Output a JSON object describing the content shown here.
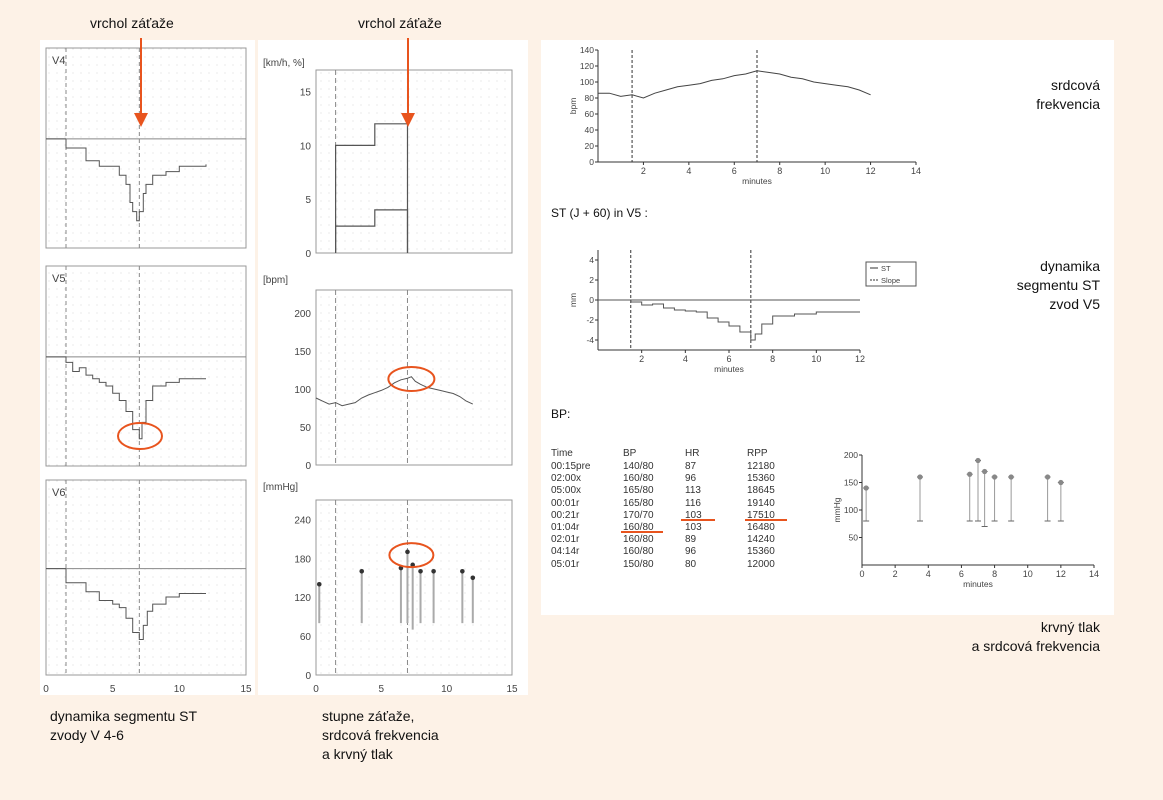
{
  "labels": {
    "peak_left": "vrchol záťaže",
    "peak_right": "vrchol záťaže",
    "caption_st_1": "dynamika segmentu ST",
    "caption_st_2": "zvody  V 4-6",
    "caption_stages_1": "stupne záťaže,",
    "caption_stages_2": "srdcová frekvencia",
    "caption_stages_3": "a krvný tlak",
    "hr_1": "srdcová",
    "hr_2": "frekvencia",
    "dyn_1": "dynamika",
    "dyn_2": "segmentu ST",
    "dyn_3": "zvod V5",
    "bp_1": "krvný tlak",
    "bp_2": "a srdcová frekvencia",
    "st_title": "ST (J + 60) in V5 :",
    "bp_title": "BP:"
  },
  "colors": {
    "background": "#fdf2e7",
    "marker": "#e8541e",
    "trace": "#555555"
  },
  "chart_data": [
    {
      "type": "line",
      "panel": "V4",
      "leads": "V4",
      "x_ticks": [],
      "xlim": [
        0,
        15
      ],
      "series": [
        {
          "x": [
            0,
            1.5,
            1.5,
            3,
            3,
            4,
            5,
            5.5,
            6,
            6.3,
            6.5,
            6.8,
            7,
            7.3,
            7.5,
            8,
            9,
            10,
            12
          ],
          "y": [
            0,
            0,
            -0.5,
            -0.8,
            -1.2,
            -1.5,
            -1.5,
            -2,
            -2.5,
            -3.5,
            -4,
            -4.5,
            -4,
            -3,
            -2.5,
            -2,
            -1.8,
            -1.5,
            -1.4
          ]
        }
      ]
    },
    {
      "type": "line",
      "panel": "V5",
      "leads": "V5",
      "xlim": [
        0,
        15
      ],
      "series": [
        {
          "x": [
            0,
            1,
            1.5,
            2,
            2.5,
            3,
            3.5,
            4,
            4.5,
            5,
            5.5,
            6,
            6.5,
            7,
            7.2,
            7.5,
            8,
            9,
            10,
            12
          ],
          "y": [
            0,
            0,
            -0.3,
            -0.8,
            -0.6,
            -1,
            -1.2,
            -1.4,
            -1.6,
            -2,
            -2.4,
            -3,
            -4,
            -4.5,
            -3.6,
            -2.4,
            -1.6,
            -1.4,
            -1.2,
            -1.2
          ]
        }
      ]
    },
    {
      "type": "line",
      "panel": "V6",
      "leads": "V6",
      "x_ticks": [
        "0",
        "5",
        "10",
        "15"
      ],
      "xlim": [
        0,
        15
      ],
      "series": [
        {
          "x": [
            0,
            1.5,
            1.5,
            3,
            3,
            4,
            5,
            5.5,
            6,
            6.5,
            7,
            7.3,
            7.6,
            8,
            9,
            10,
            12
          ],
          "y": [
            0,
            0,
            -0.8,
            -0.9,
            -1.3,
            -1.8,
            -2,
            -2.2,
            -2.8,
            -3.6,
            -4,
            -3.2,
            -2.4,
            -2,
            -1.6,
            -1.4,
            -1.4
          ]
        }
      ]
    }
  ],
  "stage_chart": {
    "type": "line",
    "ylabel": "[km/h, %]",
    "y_ticks": [
      "15",
      "10",
      "5",
      "0"
    ],
    "ylim": [
      0,
      17
    ],
    "xlim": [
      0,
      15
    ],
    "series": [
      {
        "name": "speed",
        "x": [
          1.5,
          1.5,
          4.5,
          4.5,
          7,
          7
        ],
        "y": [
          0,
          10,
          10,
          12,
          12,
          0
        ]
      },
      {
        "name": "grade",
        "x": [
          1.5,
          1.5,
          4.5,
          4.5,
          7,
          7
        ],
        "y": [
          0,
          2.5,
          2.5,
          4,
          4,
          0
        ]
      }
    ]
  },
  "hr_chart_left": {
    "type": "line",
    "ylabel": "[bpm]",
    "y_ticks": [
      "200",
      "150",
      "100",
      "50",
      "0"
    ],
    "ylim": [
      0,
      230
    ],
    "xlim": [
      0,
      15
    ],
    "series": [
      {
        "x": [
          0,
          0.5,
          1,
          1.5,
          2,
          2.5,
          3,
          3.5,
          4,
          4.5,
          5,
          5.5,
          6,
          6.5,
          7,
          7.3,
          7.6,
          8,
          8.5,
          9,
          9.5,
          10,
          10.5,
          11,
          11.5,
          12
        ],
        "y": [
          88,
          84,
          80,
          82,
          78,
          80,
          82,
          88,
          92,
          95,
          98,
          102,
          108,
          112,
          114,
          116,
          110,
          106,
          102,
          100,
          98,
          96,
          94,
          90,
          84,
          80
        ]
      }
    ]
  },
  "bp_chart_left": {
    "type": "scatter",
    "ylabel": "[mmHg]",
    "y_ticks": [
      "240",
      "180",
      "120",
      "60",
      "0"
    ],
    "ylim": [
      0,
      270
    ],
    "x_ticks": [
      "0",
      "5",
      "10",
      "15"
    ],
    "xlim": [
      0,
      15
    ],
    "points": [
      {
        "x": 0.25,
        "sys": 140,
        "dia": 80
      },
      {
        "x": 3.5,
        "sys": 160,
        "dia": 80
      },
      {
        "x": 6.5,
        "sys": 165,
        "dia": 80
      },
      {
        "x": 7,
        "sys": 190,
        "dia": 80
      },
      {
        "x": 7.4,
        "sys": 170,
        "dia": 70
      },
      {
        "x": 8,
        "sys": 160,
        "dia": 80
      },
      {
        "x": 9,
        "sys": 160,
        "dia": 80
      },
      {
        "x": 11.2,
        "sys": 160,
        "dia": 80
      },
      {
        "x": 12,
        "sys": 150,
        "dia": 80
      }
    ]
  },
  "hr_chart_right": {
    "type": "line",
    "ylabel": "bpm",
    "xlabel": "minutes",
    "y_ticks": [
      "140",
      "120",
      "100",
      "80",
      "60",
      "40",
      "20",
      "0"
    ],
    "ylim": [
      0,
      140
    ],
    "x_ticks": [
      "2",
      "4",
      "6",
      "8",
      "10",
      "12",
      "14"
    ],
    "xlim": [
      0,
      14
    ],
    "series": [
      {
        "x": [
          0,
          0.5,
          1,
          1.5,
          2,
          2.5,
          3,
          3.5,
          4,
          4.5,
          5,
          5.5,
          6,
          6.5,
          7,
          7.5,
          8,
          8.5,
          9,
          9.5,
          10,
          10.5,
          11,
          11.5,
          12
        ],
        "y": [
          86,
          86,
          82,
          84,
          80,
          86,
          90,
          94,
          96,
          98,
          102,
          104,
          108,
          110,
          114,
          112,
          110,
          106,
          104,
          100,
          98,
          96,
          94,
          90,
          84
        ]
      }
    ]
  },
  "st_chart_right": {
    "type": "line",
    "ylabel": "mm",
    "xlabel": "minutes",
    "y_ticks": [
      "4",
      "2",
      "0",
      "-2",
      "-4"
    ],
    "ylim": [
      -5,
      5
    ],
    "x_ticks": [
      "2",
      "4",
      "6",
      "8",
      "10",
      "12"
    ],
    "xlim": [
      0,
      12
    ],
    "legend": [
      "ST",
      "Slope"
    ],
    "series": [
      {
        "name": "ST",
        "x": [
          0,
          1.5,
          2,
          2.5,
          3,
          3.5,
          4,
          4.5,
          5,
          5.5,
          6,
          6.5,
          7,
          7.2,
          7.5,
          8,
          9,
          10,
          12
        ],
        "y": [
          0,
          -0.2,
          -0.5,
          -0.4,
          -0.8,
          -1,
          -1.1,
          -1.2,
          -1.8,
          -2.2,
          -2.6,
          -3.2,
          -4,
          -3.4,
          -2.4,
          -1.6,
          -1.4,
          -1.2,
          -1.2
        ]
      },
      {
        "name": "Slope",
        "x": [
          0,
          12
        ],
        "y": [
          0,
          0
        ]
      }
    ]
  },
  "bp_chart_right": {
    "type": "scatter",
    "ylabel": "mmHg",
    "xlabel": "minutes",
    "y_ticks": [
      "200",
      "150",
      "100",
      "50"
    ],
    "ylim": [
      0,
      200
    ],
    "x_ticks": [
      "0",
      "2",
      "4",
      "6",
      "8",
      "10",
      "12",
      "14"
    ],
    "xlim": [
      0,
      14
    ],
    "points": [
      {
        "x": 0.25,
        "sys": 140,
        "dia": 80
      },
      {
        "x": 3.5,
        "sys": 160,
        "dia": 80
      },
      {
        "x": 6.5,
        "sys": 165,
        "dia": 80
      },
      {
        "x": 7,
        "sys": 190,
        "dia": 80
      },
      {
        "x": 7.4,
        "sys": 170,
        "dia": 70
      },
      {
        "x": 8,
        "sys": 160,
        "dia": 80
      },
      {
        "x": 9,
        "sys": 160,
        "dia": 80
      },
      {
        "x": 11.2,
        "sys": 160,
        "dia": 80
      },
      {
        "x": 12,
        "sys": 150,
        "dia": 80
      }
    ]
  },
  "bp_table": {
    "headers": [
      "Time",
      "BP",
      "HR",
      "RPP"
    ],
    "rows": [
      [
        "00:15pre",
        "140/80",
        "87",
        "12180"
      ],
      [
        "02:00x",
        "160/80",
        "96",
        "15360"
      ],
      [
        "05:00x",
        "165/80",
        "113",
        "18645"
      ],
      [
        "00:01r",
        "165/80",
        "116",
        "19140"
      ],
      [
        "00:21r",
        "170/70",
        "103",
        "17510"
      ],
      [
        "01:04r",
        "160/80",
        "103",
        "16480"
      ],
      [
        "02:01r",
        "160/80",
        "89",
        "14240"
      ],
      [
        "04:14r",
        "160/80",
        "96",
        "15360"
      ],
      [
        "05:01r",
        "150/80",
        "80",
        "12000"
      ]
    ]
  }
}
